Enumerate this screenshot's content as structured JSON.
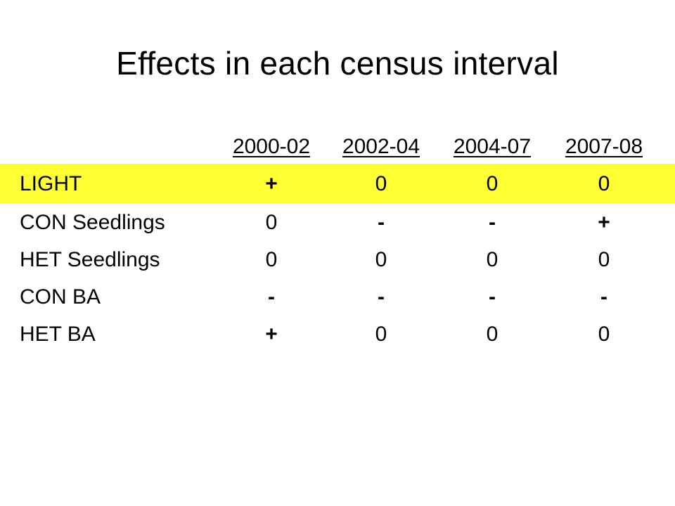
{
  "title": "Effects in each census interval",
  "table": {
    "columns": [
      "2000-02",
      "2002-04",
      "2004-07",
      "2007-08"
    ],
    "rows": [
      {
        "label": "LIGHT",
        "values": [
          "+",
          "0",
          "0",
          "0"
        ],
        "highlighted": true
      },
      {
        "label": "CON Seedlings",
        "values": [
          "0",
          "-",
          "-",
          "+"
        ],
        "highlighted": false
      },
      {
        "label": "HET Seedlings",
        "values": [
          "0",
          "0",
          "0",
          "0"
        ],
        "highlighted": false
      },
      {
        "label": "CON BA",
        "values": [
          "-",
          "-",
          "-",
          "-"
        ],
        "highlighted": false
      },
      {
        "label": "HET BA",
        "values": [
          "+",
          "0",
          "0",
          "0"
        ],
        "highlighted": false
      }
    ]
  },
  "colors": {
    "highlight": "#ffff33",
    "text": "#000000",
    "background": "#ffffff"
  }
}
